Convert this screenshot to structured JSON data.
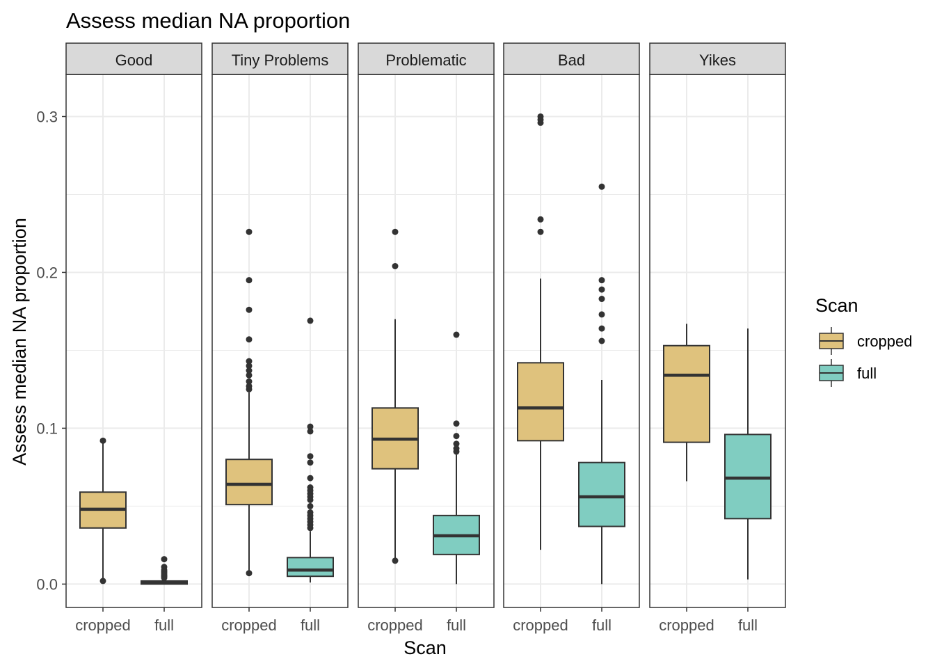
{
  "chart_data": {
    "type": "boxplot",
    "title": "Assess median NA proportion",
    "xlabel": "Scan",
    "ylabel": "Assess median NA proportion",
    "ylim": [
      -0.015,
      0.327
    ],
    "y_ticks": [
      0.0,
      0.1,
      0.2,
      0.3
    ],
    "y_tick_labels": [
      "0.0",
      "0.1",
      "0.2",
      "0.3"
    ],
    "categories": [
      "cropped",
      "full"
    ],
    "grid": true,
    "legend": {
      "title": "Scan",
      "placement": "right",
      "entries": [
        {
          "name": "cropped",
          "color": "#dfc27d"
        },
        {
          "name": "full",
          "color": "#80cdc1"
        }
      ]
    },
    "colors": {
      "cropped": "#dfc27d",
      "full": "#80cdc1",
      "outline": "#333333",
      "strip_fill": "#d9d9d9",
      "grid": "#ebebeb"
    },
    "facets": [
      {
        "label": "Good",
        "boxes": [
          {
            "category": "cropped",
            "lower_whisker": 0.002,
            "q1": 0.036,
            "median": 0.048,
            "q3": 0.059,
            "upper_whisker": 0.092,
            "outliers": [
              0.092,
              0.002
            ]
          },
          {
            "category": "full",
            "lower_whisker": 0.0,
            "q1": 0.0,
            "median": 0.001,
            "q3": 0.002,
            "upper_whisker": 0.003,
            "outliers": [
              0.016,
              0.011,
              0.009,
              0.008,
              0.007,
              0.006,
              0.005,
              0.005,
              0.004
            ]
          }
        ]
      },
      {
        "label": "Tiny Problems",
        "boxes": [
          {
            "category": "cropped",
            "lower_whisker": 0.007,
            "q1": 0.051,
            "median": 0.064,
            "q3": 0.08,
            "upper_whisker": 0.123,
            "outliers": [
              0.226,
              0.195,
              0.176,
              0.157,
              0.143,
              0.14,
              0.137,
              0.134,
              0.13,
              0.127,
              0.125,
              0.007
            ]
          },
          {
            "category": "full",
            "lower_whisker": 0.001,
            "q1": 0.005,
            "median": 0.009,
            "q3": 0.017,
            "upper_whisker": 0.034,
            "outliers": [
              0.169,
              0.101,
              0.098,
              0.082,
              0.078,
              0.068,
              0.062,
              0.06,
              0.058,
              0.056,
              0.054,
              0.05,
              0.046,
              0.044,
              0.042,
              0.04,
              0.038,
              0.036
            ]
          }
        ]
      },
      {
        "label": "Problematic",
        "boxes": [
          {
            "category": "cropped",
            "lower_whisker": 0.015,
            "q1": 0.074,
            "median": 0.093,
            "q3": 0.113,
            "upper_whisker": 0.17,
            "outliers": [
              0.226,
              0.204,
              0.015
            ]
          },
          {
            "category": "full",
            "lower_whisker": 0.0,
            "q1": 0.019,
            "median": 0.031,
            "q3": 0.044,
            "upper_whisker": 0.083,
            "outliers": [
              0.16,
              0.103,
              0.095,
              0.09,
              0.087,
              0.085
            ]
          }
        ]
      },
      {
        "label": "Bad",
        "boxes": [
          {
            "category": "cropped",
            "lower_whisker": 0.022,
            "q1": 0.092,
            "median": 0.113,
            "q3": 0.142,
            "upper_whisker": 0.196,
            "outliers": [
              0.3,
              0.298,
              0.296,
              0.234,
              0.226
            ]
          },
          {
            "category": "full",
            "lower_whisker": 0.0,
            "q1": 0.037,
            "median": 0.056,
            "q3": 0.078,
            "upper_whisker": 0.131,
            "outliers": [
              0.255,
              0.195,
              0.189,
              0.183,
              0.173,
              0.164,
              0.156
            ]
          }
        ]
      },
      {
        "label": "Yikes",
        "boxes": [
          {
            "category": "cropped",
            "lower_whisker": 0.066,
            "q1": 0.091,
            "median": 0.134,
            "q3": 0.153,
            "upper_whisker": 0.167,
            "outliers": []
          },
          {
            "category": "full",
            "lower_whisker": 0.003,
            "q1": 0.042,
            "median": 0.068,
            "q3": 0.096,
            "upper_whisker": 0.164,
            "outliers": []
          }
        ]
      }
    ]
  }
}
